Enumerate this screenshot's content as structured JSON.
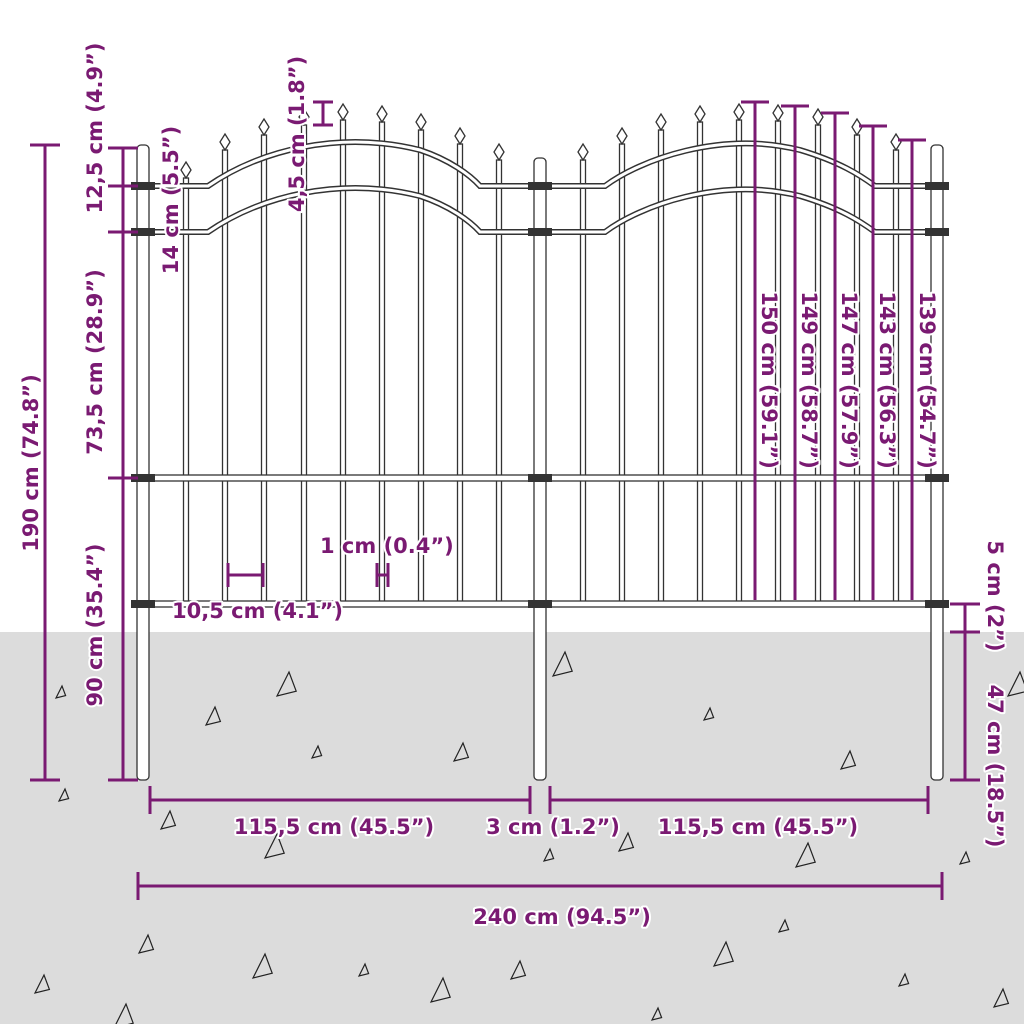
{
  "colors": {
    "dimension": "#7a1a72",
    "ground": "#dcdcdc",
    "fence_outline": "#333333"
  },
  "dimensions": {
    "total_height": "190 cm (74.8”)",
    "top_section": "12,5 cm (4.9”)",
    "rail_gap": "14 cm (5.5”)",
    "spike_height": "4,5 cm (1.8”)",
    "mid_section": "73,5 cm (28.9”)",
    "below_ground": "90 cm (35.4”)",
    "picket_spacing": "10,5 cm (4.1”)",
    "picket_width": "1 cm (0.4”)",
    "picket_150": "150 cm (59.1”)",
    "picket_149": "149 cm (58.7”)",
    "picket_147": "147 cm (57.9”)",
    "picket_143": "143 cm (56.3”)",
    "picket_139": "139 cm (54.7”)",
    "bottom_clearance": "5 cm (2”)",
    "post_in_ground": "47 cm (18.5”)",
    "panel_left_width": "115,5 cm (45.5”)",
    "post_gap": "3 cm (1.2”)",
    "panel_right_width": "115,5 cm (45.5”)",
    "total_width": "240 cm (94.5”)"
  }
}
